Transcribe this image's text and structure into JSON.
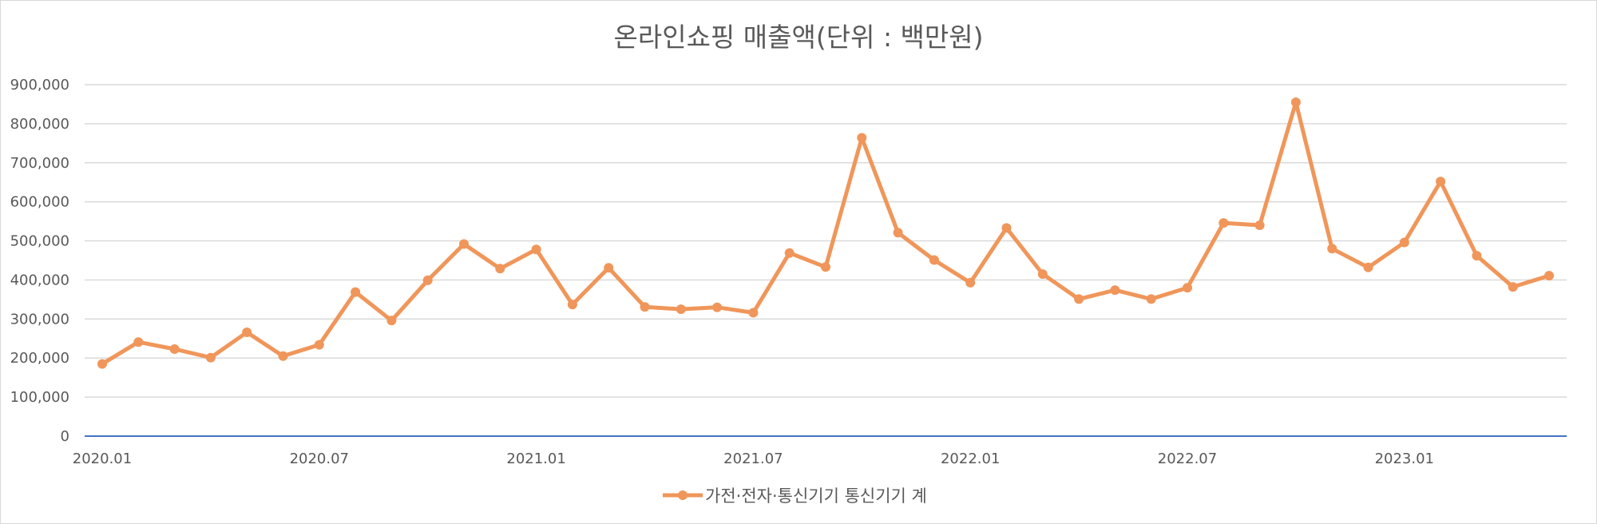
{
  "chart_data": {
    "type": "line",
    "title": "온라인쇼핑 매출액(단위 : 백만원)",
    "xlabel": "",
    "ylabel": "",
    "ylim": [
      0,
      900000
    ],
    "yticks": [
      0,
      100000,
      200000,
      300000,
      400000,
      500000,
      600000,
      700000,
      800000,
      900000
    ],
    "ytick_labels": [
      "0",
      "100,000",
      "200,000",
      "300,000",
      "400,000",
      "500,000",
      "600,000",
      "700,000",
      "800,000",
      "900,000"
    ],
    "xtick_labels": [
      "2020.01",
      "2020.07",
      "2021.01",
      "2021.07",
      "2022.01",
      "2022.07",
      "2023.01"
    ],
    "grid": true,
    "legend_position": "bottom",
    "x": [
      "2020.01",
      "2020.02",
      "2020.03",
      "2020.04",
      "2020.05",
      "2020.06",
      "2020.07",
      "2020.08",
      "2020.09",
      "2020.10",
      "2020.11",
      "2020.12",
      "2021.01",
      "2021.02",
      "2021.03",
      "2021.04",
      "2021.05",
      "2021.06",
      "2021.07",
      "2021.08",
      "2021.09",
      "2021.10",
      "2021.11",
      "2021.12",
      "2022.01",
      "2022.02",
      "2022.03",
      "2022.04",
      "2022.05",
      "2022.06",
      "2022.07",
      "2022.08",
      "2022.09",
      "2022.10",
      "2022.11",
      "2022.12",
      "2023.01",
      "2023.02",
      "2023.03",
      "2023.04",
      "2023.05"
    ],
    "series": [
      {
        "name": "가전·전자·통신기기 통신기기 계",
        "color": "#f0965a",
        "values": [
          185000,
          241000,
          223000,
          201000,
          266000,
          205000,
          234000,
          369000,
          296000,
          399000,
          492000,
          429000,
          478000,
          337000,
          431000,
          331000,
          325000,
          330000,
          316000,
          469000,
          433000,
          764000,
          521000,
          451000,
          393000,
          533000,
          415000,
          351000,
          374000,
          351000,
          380000,
          546000,
          540000,
          855000,
          480000,
          432000,
          496000,
          652000,
          462000,
          382000,
          411000
        ]
      }
    ]
  }
}
